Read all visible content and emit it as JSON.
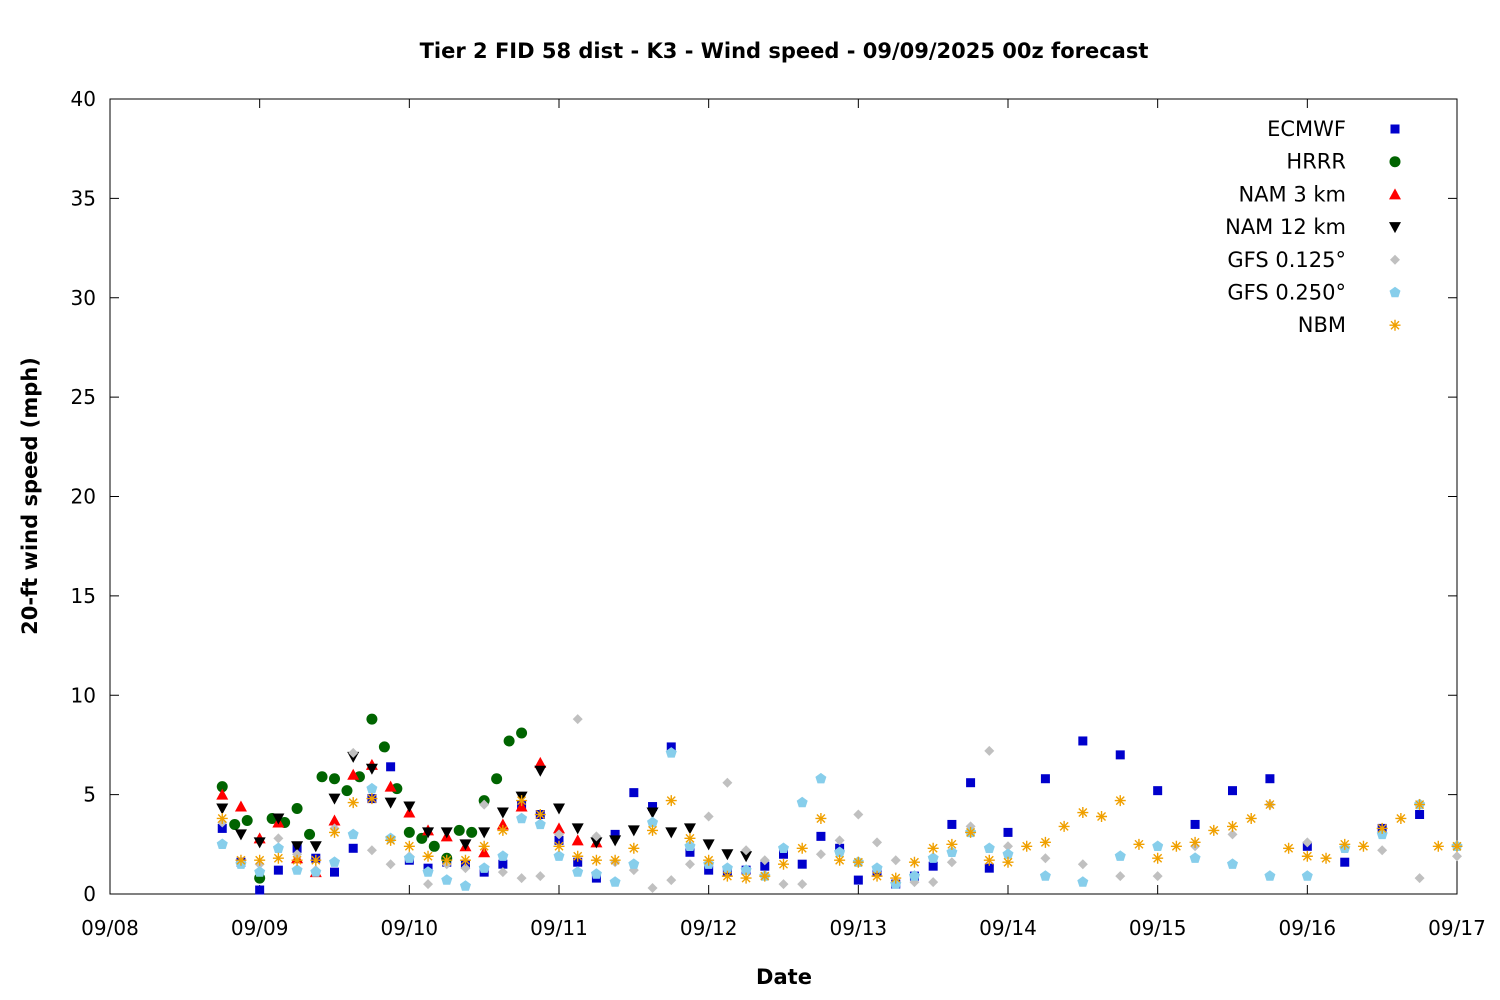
{
  "chart_data": {
    "type": "scatter",
    "title": "Tier 2 FID 58 dist - K3 - Wind speed - 09/09/2025 00z forecast",
    "xlabel": "Date",
    "ylabel": "20-ft wind speed (mph)",
    "xlim": [
      "2025-09-08 00:00",
      "2025-09-17 00:00"
    ],
    "ylim": [
      0,
      40
    ],
    "x_ticks": [
      "09/08",
      "09/09",
      "09/10",
      "09/11",
      "09/12",
      "09/13",
      "09/14",
      "09/15",
      "09/16",
      "09/17"
    ],
    "y_ticks": [
      0,
      5,
      10,
      15,
      20,
      25,
      30,
      35,
      40
    ],
    "grid": false,
    "legend_position": "top-right",
    "series": [
      {
        "name": "ECMWF",
        "color": "#0000cc",
        "marker": "square",
        "x": [
          "2025-09-08 18:00",
          "2025-09-08 21:00",
          "2025-09-09 00:00",
          "2025-09-09 03:00",
          "2025-09-09 06:00",
          "2025-09-09 09:00",
          "2025-09-09 12:00",
          "2025-09-09 15:00",
          "2025-09-09 18:00",
          "2025-09-09 21:00",
          "2025-09-10 00:00",
          "2025-09-10 03:00",
          "2025-09-10 06:00",
          "2025-09-10 09:00",
          "2025-09-10 12:00",
          "2025-09-10 15:00",
          "2025-09-10 18:00",
          "2025-09-10 21:00",
          "2025-09-11 00:00",
          "2025-09-11 03:00",
          "2025-09-11 06:00",
          "2025-09-11 09:00",
          "2025-09-11 12:00",
          "2025-09-11 15:00",
          "2025-09-11 18:00",
          "2025-09-11 21:00",
          "2025-09-12 00:00",
          "2025-09-12 03:00",
          "2025-09-12 06:00",
          "2025-09-12 09:00",
          "2025-09-12 12:00",
          "2025-09-12 15:00",
          "2025-09-12 18:00",
          "2025-09-12 21:00",
          "2025-09-13 00:00",
          "2025-09-13 03:00",
          "2025-09-13 06:00",
          "2025-09-13 09:00",
          "2025-09-13 12:00",
          "2025-09-13 15:00",
          "2025-09-13 18:00",
          "2025-09-13 21:00",
          "2025-09-14 00:00",
          "2025-09-14 06:00",
          "2025-09-14 12:00",
          "2025-09-14 18:00",
          "2025-09-15 00:00",
          "2025-09-15 06:00",
          "2025-09-15 12:00",
          "2025-09-15 18:00",
          "2025-09-16 00:00",
          "2025-09-16 06:00",
          "2025-09-16 12:00",
          "2025-09-16 18:00"
        ],
        "y": [
          3.3,
          1.6,
          0.2,
          1.2,
          2.3,
          1.8,
          1.1,
          2.3,
          4.8,
          6.4,
          1.7,
          1.3,
          1.6,
          1.5,
          1.1,
          1.5,
          4.5,
          4.0,
          2.7,
          1.6,
          0.8,
          3.0,
          5.1,
          4.4,
          7.4,
          2.1,
          1.2,
          1.1,
          1.2,
          1.4,
          2.0,
          1.5,
          2.9,
          2.3,
          0.7,
          1.1,
          0.5,
          0.9,
          1.4,
          3.5,
          5.6,
          1.3,
          3.1,
          5.8,
          7.7,
          7.0,
          5.2,
          3.5,
          5.2,
          5.8,
          2.4,
          1.6,
          3.3,
          4.0
        ]
      },
      {
        "name": "HRRR",
        "color": "#006400",
        "marker": "circle",
        "x": [
          "2025-09-08 18:00",
          "2025-09-08 20:00",
          "2025-09-08 22:00",
          "2025-09-09 00:00",
          "2025-09-09 02:00",
          "2025-09-09 04:00",
          "2025-09-09 06:00",
          "2025-09-09 08:00",
          "2025-09-09 10:00",
          "2025-09-09 12:00",
          "2025-09-09 14:00",
          "2025-09-09 16:00",
          "2025-09-09 18:00",
          "2025-09-09 20:00",
          "2025-09-09 22:00",
          "2025-09-10 00:00",
          "2025-09-10 02:00",
          "2025-09-10 04:00",
          "2025-09-10 06:00",
          "2025-09-10 08:00",
          "2025-09-10 10:00",
          "2025-09-10 12:00",
          "2025-09-10 14:00",
          "2025-09-10 16:00",
          "2025-09-10 18:00"
        ],
        "y": [
          5.4,
          3.5,
          3.7,
          0.8,
          3.8,
          3.6,
          4.3,
          3.0,
          5.9,
          5.8,
          5.2,
          5.9,
          8.8,
          7.4,
          5.3,
          3.1,
          2.8,
          2.4,
          1.8,
          3.2,
          3.1,
          4.7,
          5.8,
          7.7,
          8.1
        ]
      },
      {
        "name": "NAM 3 km",
        "color": "#ff0000",
        "marker": "triangle-up",
        "x": [
          "2025-09-08 18:00",
          "2025-09-08 21:00",
          "2025-09-09 00:00",
          "2025-09-09 03:00",
          "2025-09-09 06:00",
          "2025-09-09 09:00",
          "2025-09-09 12:00",
          "2025-09-09 15:00",
          "2025-09-09 18:00",
          "2025-09-09 21:00",
          "2025-09-10 00:00",
          "2025-09-10 03:00",
          "2025-09-10 06:00",
          "2025-09-10 09:00",
          "2025-09-10 12:00",
          "2025-09-10 15:00",
          "2025-09-10 18:00",
          "2025-09-10 21:00",
          "2025-09-11 00:00",
          "2025-09-11 03:00",
          "2025-09-11 06:00"
        ],
        "y": [
          5.0,
          4.4,
          2.8,
          3.6,
          1.8,
          1.1,
          3.7,
          6.0,
          6.5,
          5.4,
          4.1,
          3.2,
          2.9,
          2.4,
          2.1,
          3.5,
          4.4,
          6.6,
          3.3,
          2.7,
          2.6
        ]
      },
      {
        "name": "NAM 12 km",
        "color": "#000000",
        "marker": "triangle-down",
        "x": [
          "2025-09-08 18:00",
          "2025-09-08 21:00",
          "2025-09-09 00:00",
          "2025-09-09 03:00",
          "2025-09-09 06:00",
          "2025-09-09 09:00",
          "2025-09-09 12:00",
          "2025-09-09 15:00",
          "2025-09-09 18:00",
          "2025-09-09 21:00",
          "2025-09-10 00:00",
          "2025-09-10 03:00",
          "2025-09-10 06:00",
          "2025-09-10 09:00",
          "2025-09-10 12:00",
          "2025-09-10 15:00",
          "2025-09-10 18:00",
          "2025-09-10 21:00",
          "2025-09-11 00:00",
          "2025-09-11 03:00",
          "2025-09-11 06:00",
          "2025-09-11 09:00",
          "2025-09-11 12:00",
          "2025-09-11 15:00",
          "2025-09-11 18:00",
          "2025-09-11 21:00",
          "2025-09-12 00:00",
          "2025-09-12 03:00",
          "2025-09-12 06:00"
        ],
        "y": [
          4.3,
          3.0,
          2.6,
          3.8,
          2.4,
          2.4,
          4.8,
          6.9,
          6.3,
          4.6,
          4.4,
          3.1,
          3.1,
          2.5,
          3.1,
          4.1,
          4.9,
          6.2,
          4.3,
          3.3,
          2.6,
          2.7,
          3.2,
          4.1,
          3.1,
          3.3,
          2.5,
          2.0,
          1.9
        ]
      },
      {
        "name": "GFS 0.125°",
        "color": "#c0c0c0",
        "marker": "diamond",
        "x": [
          "2025-09-08 18:00",
          "2025-09-08 21:00",
          "2025-09-09 00:00",
          "2025-09-09 03:00",
          "2025-09-09 06:00",
          "2025-09-09 09:00",
          "2025-09-09 12:00",
          "2025-09-09 15:00",
          "2025-09-09 18:00",
          "2025-09-09 21:00",
          "2025-09-10 00:00",
          "2025-09-10 03:00",
          "2025-09-10 06:00",
          "2025-09-10 09:00",
          "2025-09-10 12:00",
          "2025-09-10 15:00",
          "2025-09-10 18:00",
          "2025-09-10 21:00",
          "2025-09-11 00:00",
          "2025-09-11 03:00",
          "2025-09-11 06:00",
          "2025-09-11 09:00",
          "2025-09-11 12:00",
          "2025-09-11 15:00",
          "2025-09-11 18:00",
          "2025-09-11 21:00",
          "2025-09-12 00:00",
          "2025-09-12 03:00",
          "2025-09-12 06:00",
          "2025-09-12 09:00",
          "2025-09-12 12:00",
          "2025-09-12 15:00",
          "2025-09-12 18:00",
          "2025-09-12 21:00",
          "2025-09-13 00:00",
          "2025-09-13 03:00",
          "2025-09-13 06:00",
          "2025-09-13 09:00",
          "2025-09-13 12:00",
          "2025-09-13 15:00",
          "2025-09-13 18:00",
          "2025-09-13 21:00",
          "2025-09-14 00:00",
          "2025-09-14 06:00",
          "2025-09-14 12:00",
          "2025-09-14 18:00",
          "2025-09-15 00:00",
          "2025-09-15 06:00",
          "2025-09-15 12:00",
          "2025-09-15 18:00",
          "2025-09-16 00:00",
          "2025-09-16 06:00",
          "2025-09-16 12:00",
          "2025-09-16 18:00",
          "2025-09-17 00:00"
        ],
        "y": [
          3.6,
          1.6,
          1.5,
          2.8,
          2.0,
          1.2,
          3.3,
          7.1,
          2.2,
          1.5,
          1.9,
          0.5,
          1.5,
          1.3,
          4.5,
          1.1,
          0.8,
          0.9,
          3.0,
          8.8,
          2.9,
          1.6,
          1.2,
          0.3,
          0.7,
          1.5,
          3.9,
          5.6,
          2.2,
          1.7,
          0.5,
          0.5,
          2.0,
          2.7,
          4.0,
          2.6,
          1.7,
          0.6,
          0.6,
          1.6,
          3.4,
          7.2,
          2.4,
          1.8,
          1.5,
          0.9,
          0.9,
          2.4,
          3.0,
          4.5,
          2.6,
          2.3,
          2.2,
          0.8,
          1.9
        ]
      },
      {
        "name": "GFS 0.250°",
        "color": "#87ceeb",
        "marker": "pentagon",
        "x": [
          "2025-09-08 18:00",
          "2025-09-08 21:00",
          "2025-09-09 00:00",
          "2025-09-09 03:00",
          "2025-09-09 06:00",
          "2025-09-09 09:00",
          "2025-09-09 12:00",
          "2025-09-09 15:00",
          "2025-09-09 18:00",
          "2025-09-09 21:00",
          "2025-09-10 00:00",
          "2025-09-10 03:00",
          "2025-09-10 06:00",
          "2025-09-10 09:00",
          "2025-09-10 12:00",
          "2025-09-10 15:00",
          "2025-09-10 18:00",
          "2025-09-10 21:00",
          "2025-09-11 00:00",
          "2025-09-11 03:00",
          "2025-09-11 06:00",
          "2025-09-11 09:00",
          "2025-09-11 12:00",
          "2025-09-11 15:00",
          "2025-09-11 18:00",
          "2025-09-11 21:00",
          "2025-09-12 00:00",
          "2025-09-12 03:00",
          "2025-09-12 06:00",
          "2025-09-12 09:00",
          "2025-09-12 12:00",
          "2025-09-12 15:00",
          "2025-09-12 18:00",
          "2025-09-12 21:00",
          "2025-09-13 00:00",
          "2025-09-13 03:00",
          "2025-09-13 06:00",
          "2025-09-13 09:00",
          "2025-09-13 12:00",
          "2025-09-13 15:00",
          "2025-09-13 18:00",
          "2025-09-13 21:00",
          "2025-09-14 00:00",
          "2025-09-14 06:00",
          "2025-09-14 12:00",
          "2025-09-14 18:00",
          "2025-09-15 00:00",
          "2025-09-15 06:00",
          "2025-09-15 12:00",
          "2025-09-15 18:00",
          "2025-09-16 00:00",
          "2025-09-16 06:00",
          "2025-09-16 12:00",
          "2025-09-16 18:00",
          "2025-09-17 00:00"
        ],
        "y": [
          2.5,
          1.5,
          1.1,
          2.3,
          1.2,
          1.1,
          1.6,
          3.0,
          5.3,
          2.8,
          1.8,
          1.1,
          0.7,
          0.4,
          1.3,
          1.9,
          3.8,
          3.5,
          1.9,
          1.1,
          1.0,
          0.6,
          1.5,
          3.6,
          7.1,
          2.4,
          1.5,
          1.3,
          1.2,
          0.9,
          2.3,
          4.6,
          5.8,
          2.1,
          1.6,
          1.3,
          0.5,
          0.9,
          1.8,
          2.1,
          3.1,
          2.3,
          2.0,
          0.9,
          0.6,
          1.9,
          2.4,
          1.8,
          1.5,
          0.9,
          0.9,
          2.3,
          3.0,
          4.5,
          2.4
        ]
      },
      {
        "name": "NBM",
        "color": "#f0a000",
        "marker": "star",
        "x": [
          "2025-09-08 18:00",
          "2025-09-08 21:00",
          "2025-09-09 00:00",
          "2025-09-09 03:00",
          "2025-09-09 06:00",
          "2025-09-09 09:00",
          "2025-09-09 12:00",
          "2025-09-09 15:00",
          "2025-09-09 18:00",
          "2025-09-09 21:00",
          "2025-09-10 00:00",
          "2025-09-10 03:00",
          "2025-09-10 06:00",
          "2025-09-10 09:00",
          "2025-09-10 12:00",
          "2025-09-10 15:00",
          "2025-09-10 18:00",
          "2025-09-10 21:00",
          "2025-09-11 00:00",
          "2025-09-11 03:00",
          "2025-09-11 06:00",
          "2025-09-11 09:00",
          "2025-09-11 12:00",
          "2025-09-11 15:00",
          "2025-09-11 18:00",
          "2025-09-11 21:00",
          "2025-09-12 00:00",
          "2025-09-12 03:00",
          "2025-09-12 06:00",
          "2025-09-12 09:00",
          "2025-09-12 12:00",
          "2025-09-12 15:00",
          "2025-09-12 18:00",
          "2025-09-12 21:00",
          "2025-09-13 00:00",
          "2025-09-13 03:00",
          "2025-09-13 06:00",
          "2025-09-13 09:00",
          "2025-09-13 12:00",
          "2025-09-13 15:00",
          "2025-09-13 18:00",
          "2025-09-13 21:00",
          "2025-09-14 00:00",
          "2025-09-14 03:00",
          "2025-09-14 06:00",
          "2025-09-14 09:00",
          "2025-09-14 12:00",
          "2025-09-14 15:00",
          "2025-09-14 18:00",
          "2025-09-14 21:00",
          "2025-09-15 00:00",
          "2025-09-15 03:00",
          "2025-09-15 06:00",
          "2025-09-15 09:00",
          "2025-09-15 12:00",
          "2025-09-15 15:00",
          "2025-09-15 18:00",
          "2025-09-15 21:00",
          "2025-09-16 00:00",
          "2025-09-16 03:00",
          "2025-09-16 06:00",
          "2025-09-16 09:00",
          "2025-09-16 12:00",
          "2025-09-16 15:00",
          "2025-09-16 18:00",
          "2025-09-16 21:00",
          "2025-09-17 00:00"
        ],
        "y": [
          3.8,
          1.7,
          1.7,
          1.8,
          1.7,
          1.7,
          3.1,
          4.6,
          4.8,
          2.7,
          2.4,
          1.9,
          1.7,
          1.7,
          2.4,
          3.2,
          4.7,
          4.0,
          2.4,
          1.9,
          1.7,
          1.7,
          2.3,
          3.2,
          4.7,
          2.8,
          1.7,
          0.9,
          0.8,
          0.9,
          1.5,
          2.3,
          3.8,
          1.7,
          1.6,
          0.9,
          0.8,
          1.6,
          2.3,
          2.5,
          3.1,
          1.7,
          1.6,
          2.4,
          2.6,
          3.4,
          4.1,
          3.9,
          4.7,
          2.5,
          1.8,
          2.4,
          2.6,
          3.2,
          3.4,
          3.8,
          4.5,
          2.3,
          1.9,
          1.8,
          2.5,
          2.4,
          3.3,
          3.8,
          4.5,
          2.4,
          2.4
        ]
      }
    ]
  }
}
